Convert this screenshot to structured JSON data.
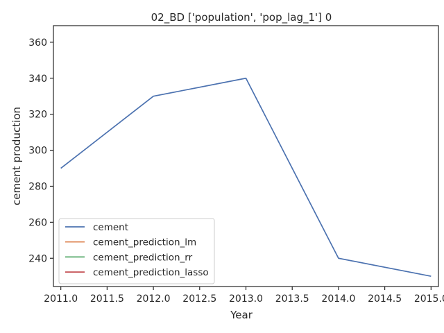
{
  "chart_data": {
    "type": "line",
    "title": "02_BD ['population', 'pop_lag_1'] 0",
    "xlabel": "Year",
    "ylabel": "cement production",
    "xlim": [
      2010.92,
      2015.08
    ],
    "ylim": [
      224.3,
      369.2
    ],
    "x_ticks": [
      2011.0,
      2011.5,
      2012.0,
      2012.5,
      2013.0,
      2013.5,
      2014.0,
      2014.5,
      2015.0
    ],
    "x_tick_labels": [
      "2011.0",
      "2011.5",
      "2012.0",
      "2012.5",
      "2013.0",
      "2013.5",
      "2014.0",
      "2014.5",
      "2015.0"
    ],
    "y_ticks": [
      240,
      260,
      280,
      300,
      320,
      340,
      360
    ],
    "y_tick_labels": [
      "240",
      "260",
      "280",
      "300",
      "320",
      "340",
      "360"
    ],
    "grid": false,
    "legend_placement": "lower-left",
    "series": [
      {
        "name": "cement",
        "color": "#4c72b0",
        "x": [
          2011,
          2012,
          2013,
          2014,
          2015
        ],
        "values": [
          290,
          330,
          340,
          240,
          230
        ]
      },
      {
        "name": "cement_prediction_lm",
        "color": "#dd8452",
        "x": [],
        "values": []
      },
      {
        "name": "cement_prediction_rr",
        "color": "#55a868",
        "x": [],
        "values": []
      },
      {
        "name": "cement_prediction_lasso",
        "color": "#c44e52",
        "x": [],
        "values": []
      }
    ]
  }
}
